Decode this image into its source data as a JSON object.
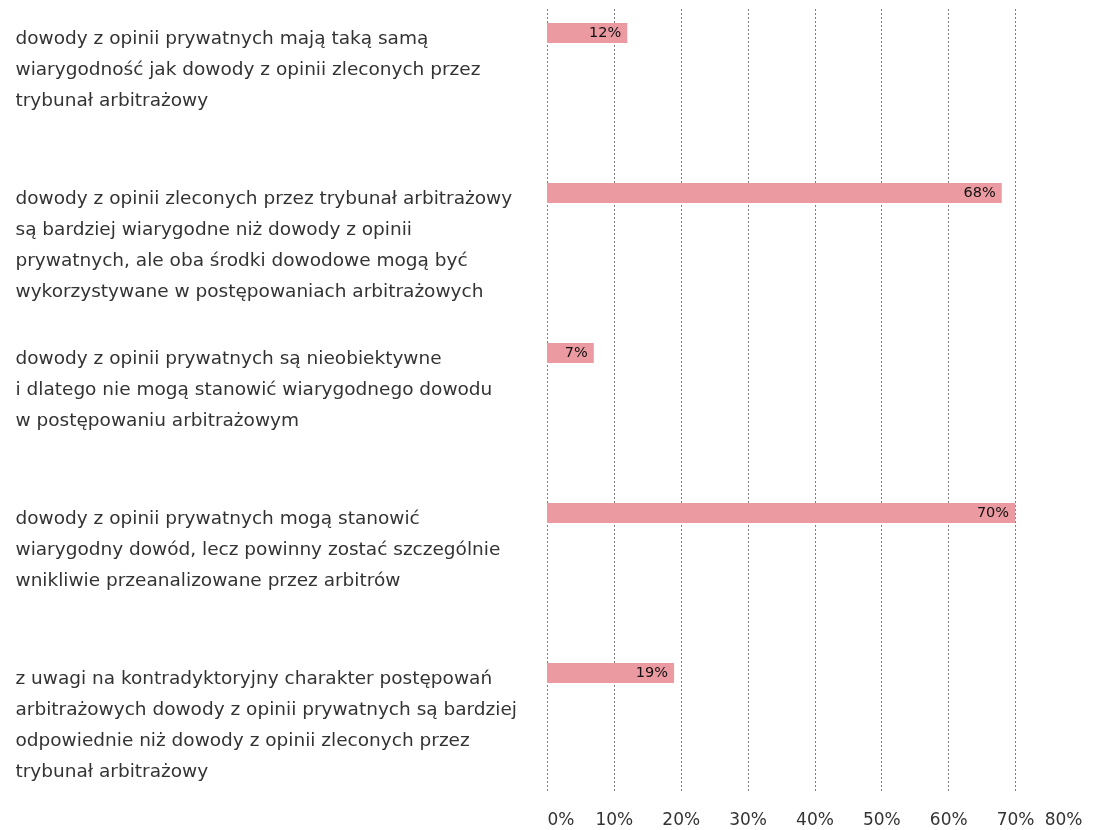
{
  "chart_data": {
    "type": "bar",
    "orientation": "horizontal",
    "categories": [
      "dowody z opinii prywatnych mają taką samą\nwiarygodność jak dowody z opinii zleconych przez\ntrybunał arbitrażowy",
      "dowody z opinii zleconych przez trybunał arbitrażowy\nsą bardziej wiarygodne niż dowody z opinii\nprywatnych, ale oba środki dowodowe mogą być\nwykorzystywane w postępowaniach arbitrażowych",
      "dowody z opinii prywatnych są nieobiektywne\ni dlatego nie mogą stanowić wiarygodnego dowodu\nw postępowaniu arbitrażowym",
      "dowody z opinii prywatnych mogą stanowić\nwiarygodny dowód, lecz powinny zostać szczególnie\nwnikliwie przeanalizowane przez arbitrów",
      "z uwagi na kontradyktoryjny charakter postępowań\narbitrażowych dowody z opinii prywatnych są bardziej\nodpowiednie niż dowody z opinii zleconych przez\ntrybunał arbitrażowy"
    ],
    "values": [
      12,
      68,
      7,
      70,
      19
    ],
    "value_labels": [
      "12%",
      "68%",
      "7%",
      "70%",
      "19%"
    ],
    "color": "#ea9aa0",
    "xlim": [
      0,
      80
    ],
    "xticks": [
      {
        "value": 0,
        "label": "0%"
      },
      {
        "value": 10,
        "label": "10%"
      },
      {
        "value": 20,
        "label": "20%"
      },
      {
        "value": 30,
        "label": "30%"
      },
      {
        "value": 40,
        "label": "40%"
      },
      {
        "value": 50,
        "label": "50%"
      },
      {
        "value": 60,
        "label": "60%"
      },
      {
        "value": 70,
        "label": "70%"
      },
      {
        "value": 80,
        "label": "80%"
      }
    ],
    "grid": "x"
  }
}
